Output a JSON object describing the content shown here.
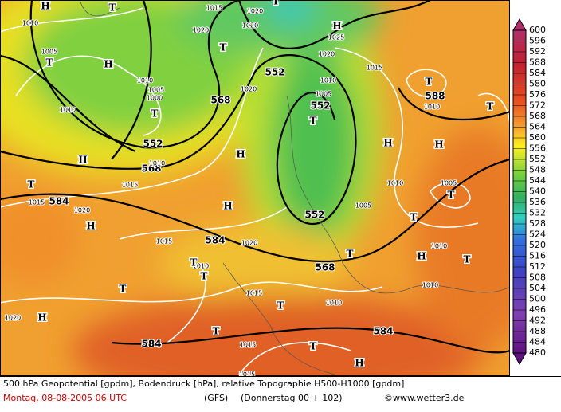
{
  "map": {
    "labels": [
      "552",
      "568",
      "552",
      "568",
      "552",
      "552",
      "568",
      "584",
      "584",
      "584",
      "584",
      "588",
      "1010",
      "1005",
      "1010",
      "1005",
      "1000",
      "1010",
      "1020",
      "1015",
      "1020",
      "1020",
      "1025",
      "1020",
      "1015",
      "1010",
      "1020",
      "1010",
      "1010",
      "1015",
      "1015",
      "1020",
      "1010",
      "1005",
      "1005",
      "1015",
      "1020",
      "1010",
      "1010",
      "1010",
      "1015",
      "1010",
      "1020",
      "1015",
      "1015",
      "1005",
      "H",
      "T",
      "H",
      "T",
      "T",
      "H",
      "T",
      "H",
      "T",
      "H",
      "T",
      "T",
      "T",
      "H",
      "H",
      "T",
      "T",
      "H",
      "T",
      "T",
      "H",
      "T",
      "H",
      "H",
      "T",
      "T",
      "T",
      "T",
      "T",
      "T",
      "H"
    ]
  },
  "legend": {
    "levels": [
      600,
      596,
      592,
      588,
      584,
      580,
      576,
      572,
      568,
      564,
      560,
      556,
      552,
      548,
      544,
      540,
      536,
      532,
      528,
      524,
      520,
      516,
      512,
      508,
      504,
      500,
      496,
      492,
      488,
      484,
      480
    ]
  },
  "footer": {
    "line1": "500 hPa Geopotential [gpdm], Bodendruck [hPa], relative Topographie H500-H1000 [gpdm]",
    "date": "Montag, 08-08-2005  06 UTC",
    "model": "(GFS)",
    "run": "(Donnerstag 00 + 102)",
    "credit": "©www.wetter3.de"
  }
}
